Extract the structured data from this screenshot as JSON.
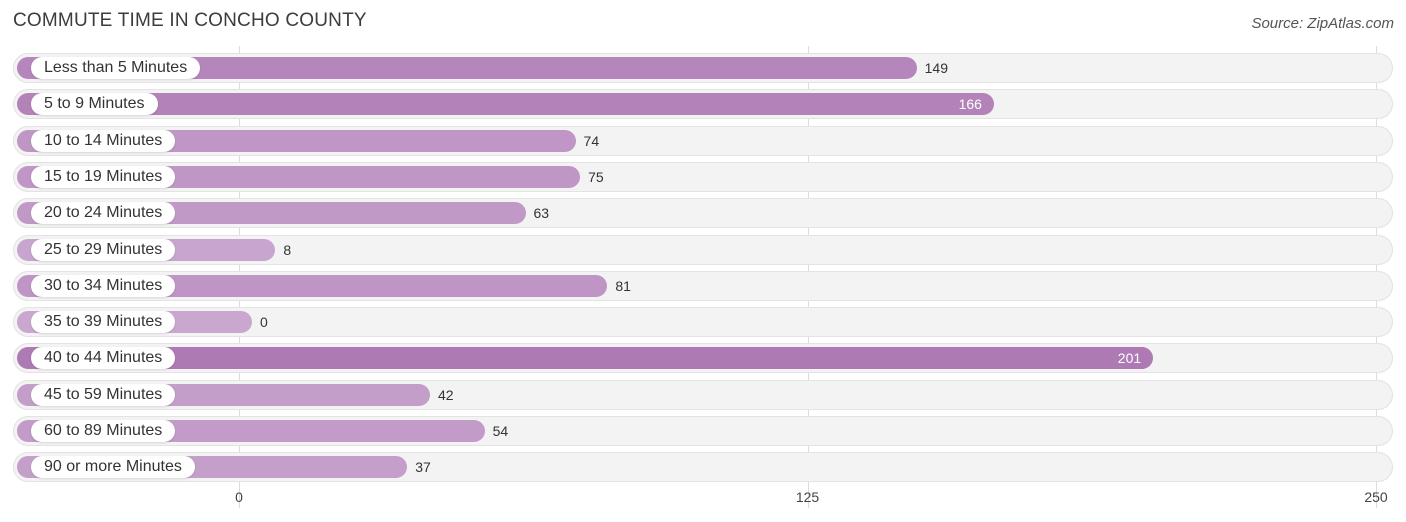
{
  "title": "COMMUTE TIME IN CONCHO COUNTY",
  "source": "Source: ZipAtlas.com",
  "colors": {
    "bar_light": "#c9a7cf",
    "bar_dark": "#ae7ab4",
    "row_bg": "#f3f3f3",
    "grid": "#dcdcdc"
  },
  "chart_data": {
    "type": "bar",
    "orientation": "horizontal",
    "title": "COMMUTE TIME IN CONCHO COUNTY",
    "xlabel": "",
    "ylabel": "",
    "xlim": [
      0,
      250
    ],
    "ticks": [
      0,
      125,
      250
    ],
    "tick_labels": [
      "0",
      "125",
      "250"
    ],
    "grid": true,
    "categories": [
      "Less than 5 Minutes",
      "5 to 9 Minutes",
      "10 to 14 Minutes",
      "15 to 19 Minutes",
      "20 to 24 Minutes",
      "25 to 29 Minutes",
      "30 to 34 Minutes",
      "35 to 39 Minutes",
      "40 to 44 Minutes",
      "45 to 59 Minutes",
      "60 to 89 Minutes",
      "90 or more Minutes"
    ],
    "values": [
      149,
      166,
      74,
      75,
      63,
      8,
      81,
      0,
      201,
      42,
      54,
      37
    ]
  }
}
